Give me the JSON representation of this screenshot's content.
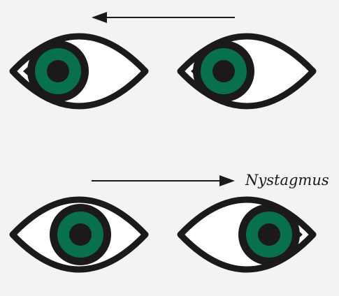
{
  "caption": "Nystagmus",
  "colors": {
    "background": "#f4f3f1",
    "outline": "#1c1a19",
    "iris": "#08704a",
    "pupil": "#1c1a19",
    "sclera": "#ffffff"
  },
  "rows": [
    {
      "name": "top-row",
      "arrow_direction": "left",
      "gaze": "left",
      "eyes": [
        "left-eye",
        "right-eye"
      ]
    },
    {
      "name": "bottom-row",
      "arrow_direction": "right",
      "gaze": "right",
      "eyes": [
        "left-eye",
        "right-eye"
      ]
    }
  ],
  "icons": {
    "eye": "eye-icon",
    "arrow_left": "arrow-left-icon",
    "arrow_right": "arrow-right-icon"
  }
}
